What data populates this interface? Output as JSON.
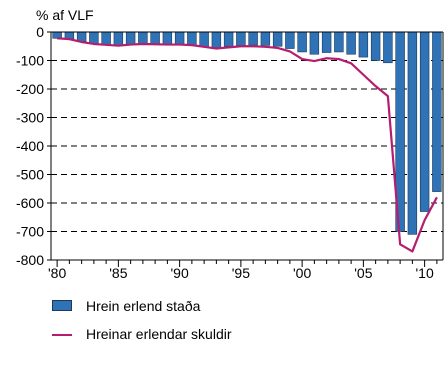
{
  "chart_data": {
    "type": "bar",
    "ylabel": "% af VLF",
    "ylim": [
      -800,
      0
    ],
    "yticks": [
      0,
      -100,
      -200,
      -300,
      -400,
      -500,
      -600,
      -700,
      -800
    ],
    "ytick_labels": [
      "0",
      "-100",
      "-200",
      "-300",
      "-400",
      "-500",
      "-600",
      "-700",
      "-800"
    ],
    "xlim": [
      1980,
      2011
    ],
    "xticks": [
      1980,
      1985,
      1990,
      1995,
      2000,
      2005,
      2010
    ],
    "xtick_labels": [
      "'80",
      "'85",
      "'90",
      "'95",
      "'00",
      "'05",
      "'10"
    ],
    "grid": true,
    "legend_position": "bottom",
    "x": [
      1980,
      1981,
      1982,
      1983,
      1984,
      1985,
      1986,
      1987,
      1988,
      1989,
      1990,
      1991,
      1992,
      1993,
      1994,
      1995,
      1996,
      1997,
      1998,
      1999,
      2000,
      2001,
      2002,
      2003,
      2004,
      2005,
      2006,
      2007,
      2008,
      2009,
      2010,
      2011
    ],
    "series": [
      {
        "name": "Hrein erlend staða",
        "type": "bar",
        "color": "#2f73b6",
        "values": [
          -22,
          -24,
          -33,
          -40,
          -44,
          -48,
          -45,
          -43,
          -44,
          -46,
          -46,
          -47,
          -52,
          -55,
          -50,
          -47,
          -46,
          -47,
          -50,
          -58,
          -70,
          -78,
          -72,
          -70,
          -78,
          -88,
          -100,
          -108,
          -700,
          -710,
          -630,
          -560
        ]
      },
      {
        "name": "Hreinar erlendar skuldir",
        "type": "line",
        "color": "#b51e6e",
        "values": [
          -22,
          -25,
          -35,
          -42,
          -45,
          -48,
          -44,
          -42,
          -43,
          -44,
          -44,
          -46,
          -52,
          -58,
          -54,
          -50,
          -50,
          -52,
          -56,
          -68,
          -95,
          -102,
          -92,
          -95,
          -110,
          -150,
          -190,
          -225,
          -745,
          -770,
          -660,
          -580
        ]
      }
    ]
  }
}
